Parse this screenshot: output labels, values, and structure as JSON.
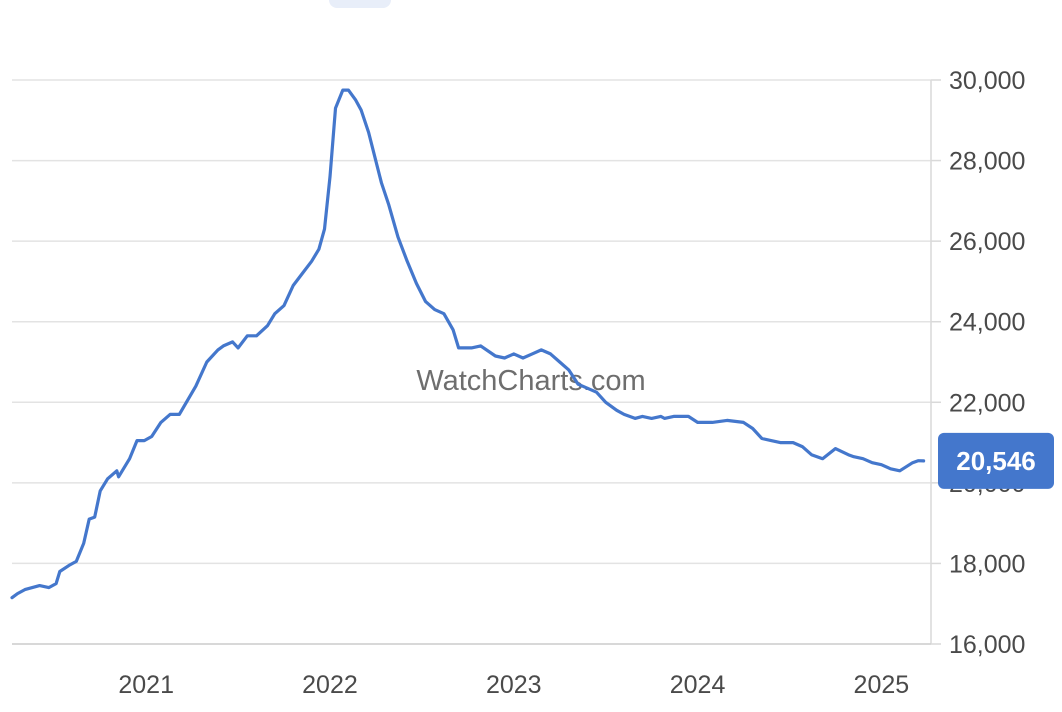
{
  "watermark": "WatchCharts.com",
  "chart_data": {
    "type": "line",
    "title": "",
    "xlabel": "",
    "ylabel": "",
    "ylim": [
      16000,
      30000
    ],
    "y_ticks": [
      16000,
      18000,
      20000,
      22000,
      24000,
      26000,
      28000,
      30000
    ],
    "y_tick_labels": [
      "16,000",
      "18,000",
      "20,000",
      "22,000",
      "24,000",
      "26,000",
      "28,000",
      "30,000"
    ],
    "x_ticks": [
      2021,
      2022,
      2023,
      2024,
      2025
    ],
    "x_tick_labels": [
      "2021",
      "2022",
      "2023",
      "2024",
      "2025"
    ],
    "xlim": [
      2020.27,
      2025.27
    ],
    "grid": true,
    "line_color": "#4477cc",
    "last_value": 20546,
    "last_value_label": "20,546",
    "series": [
      {
        "x": [
          2020.27,
          2020.3,
          2020.34,
          2020.42,
          2020.47,
          2020.51,
          2020.53,
          2020.58,
          2020.62,
          2020.66,
          2020.69,
          2020.72,
          2020.75,
          2020.79,
          2020.84,
          2020.85,
          2020.91,
          2020.95,
          2020.99,
          2021.03,
          2021.08,
          2021.13,
          2021.18,
          2021.27,
          2021.33,
          2021.39,
          2021.42,
          2021.47,
          2021.5,
          2021.55,
          2021.6,
          2021.66,
          2021.7,
          2021.75,
          2021.8,
          2021.85,
          2021.9,
          2021.94,
          2021.97,
          2022.0,
          2022.03,
          2022.07,
          2022.1,
          2022.14,
          2022.17,
          2022.21,
          2022.28,
          2022.32,
          2022.37,
          2022.42,
          2022.47,
          2022.52,
          2022.57,
          2022.62,
          2022.67,
          2022.7,
          2022.77,
          2022.82,
          2022.9,
          2022.95,
          2023.0,
          2023.05,
          2023.1,
          2023.15,
          2023.2,
          2023.25,
          2023.3,
          2023.35,
          2023.4,
          2023.45,
          2023.5,
          2023.56,
          2023.6,
          2023.66,
          2023.7,
          2023.75,
          2023.8,
          2023.82,
          2023.87,
          2023.95,
          2024.0,
          2024.08,
          2024.16,
          2024.25,
          2024.3,
          2024.35,
          2024.4,
          2024.45,
          2024.52,
          2024.57,
          2024.62,
          2024.68,
          2024.75,
          2024.82,
          2024.85,
          2024.9,
          2024.95,
          2025.0,
          2025.05,
          2025.1,
          2025.17,
          2025.2,
          2025.23
        ],
        "y": [
          17150,
          17250,
          17350,
          17450,
          17400,
          17500,
          17800,
          17950,
          18050,
          18500,
          19100,
          19150,
          19800,
          20100,
          20300,
          20150,
          20600,
          21050,
          21050,
          21150,
          21500,
          21700,
          21700,
          22400,
          23000,
          23300,
          23400,
          23500,
          23350,
          23650,
          23650,
          23900,
          24200,
          24400,
          24900,
          25200,
          25500,
          25800,
          26300,
          27600,
          29300,
          29750,
          29750,
          29500,
          29250,
          28700,
          27450,
          26900,
          26100,
          25500,
          24950,
          24500,
          24300,
          24200,
          23800,
          23350,
          23350,
          23400,
          23150,
          23100,
          23200,
          23100,
          23200,
          23300,
          23200,
          23000,
          22800,
          22450,
          22350,
          22250,
          22000,
          21800,
          21700,
          21600,
          21650,
          21600,
          21650,
          21600,
          21650,
          21650,
          21500,
          21500,
          21550,
          21500,
          21350,
          21100,
          21050,
          21000,
          21000,
          20900,
          20700,
          20600,
          20850,
          20700,
          20650,
          20600,
          20500,
          20450,
          20350,
          20300,
          20500,
          20550,
          20546
        ]
      }
    ]
  }
}
